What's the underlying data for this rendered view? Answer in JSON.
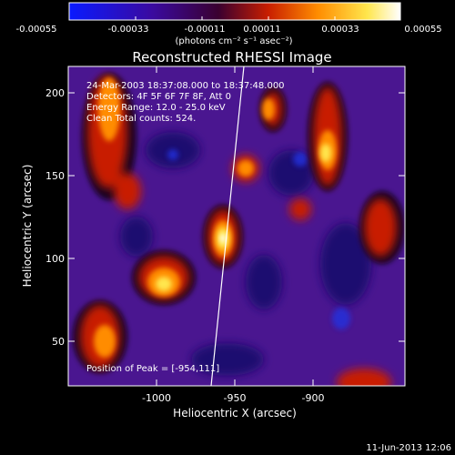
{
  "colorbar": {
    "ticks": [
      "-0.00055",
      "-0.00033",
      "-0.00011",
      "0.00011",
      "0.00033",
      "0.00055"
    ],
    "units": "(photons cm⁻² s⁻¹ asec⁻²)"
  },
  "image": {
    "title": "Reconstructed RHESSI Image",
    "time_range": "24-Mar-2003 18:37:08.000 to 18:37:48.000",
    "detectors": "Detectors: 4F 5F 6F 7F 8F, Att 0",
    "energy_range": "Energy Range: 12.0 - 25.0 keV",
    "method_counts": "Clean     Total counts: 524.",
    "peak_position": "Position of Peak = [-954,111]",
    "date_stamp": "11-Jun-2013 12:06"
  },
  "axes": {
    "xlabel": "Heliocentric X (arcsec)",
    "ylabel": "Heliocentric Y (arcsec)",
    "x_ticks": [
      "-1000",
      "-950",
      "-900"
    ],
    "y_ticks": [
      "50",
      "100",
      "150",
      "200"
    ],
    "xlim": [
      -1047,
      -863
    ],
    "ylim": [
      22,
      227
    ]
  },
  "colormap": [
    "#0a1aff",
    "#3a0aa0",
    "#3a0030",
    "#c81e00",
    "#ff8c00",
    "#ffe64d",
    "#ffffff"
  ],
  "limb_line": {
    "point_a": [
      -963,
      22
    ],
    "point_b": [
      -935,
      227
    ]
  }
}
